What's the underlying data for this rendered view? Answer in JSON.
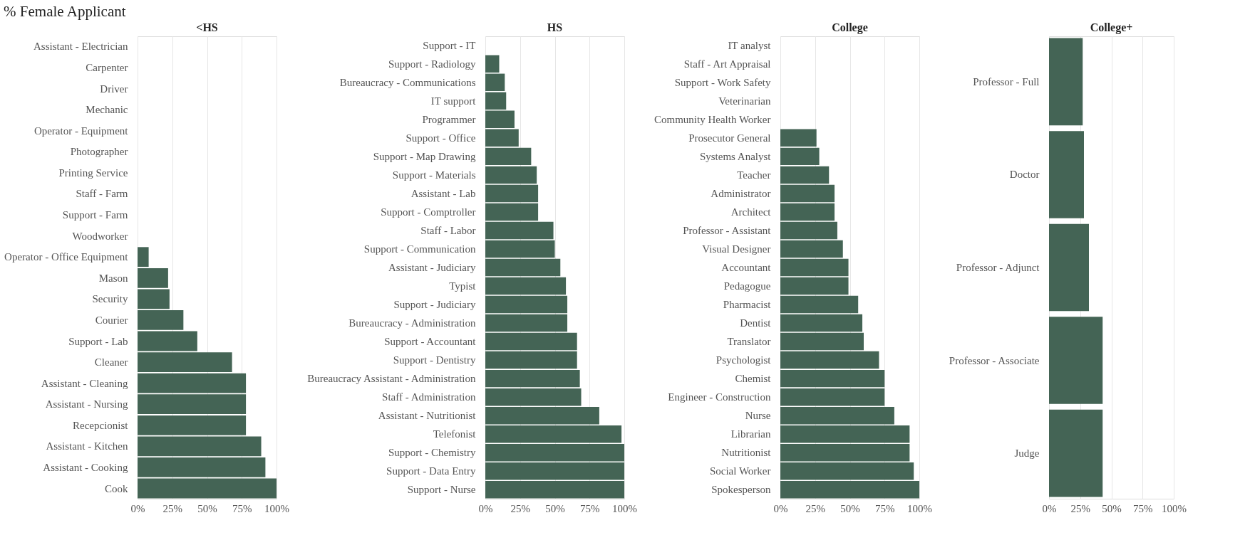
{
  "chart_data": [
    {
      "type": "bar",
      "orientation": "horizontal",
      "title": "<HS",
      "annotations": [
        "% Female Applicant"
      ],
      "color": "#446455",
      "grid": "x",
      "categories": [
        "Assistant - Electrician",
        "Carpenter",
        "Driver",
        "Mechanic",
        "Operator - Equipment",
        "Photographer",
        "Printing Service",
        "Staff - Farm",
        "Support - Farm",
        "Woodworker",
        "Operator - Office Equipment",
        "Mason",
        "Security",
        "Courier",
        "Support - Lab",
        "Cleaner",
        "Assistant - Cleaning",
        "Assistant - Nursing",
        "Recepcionist",
        "Assistant - Kitchen",
        "Assistant - Cooking",
        "Cook"
      ],
      "values": [
        0,
        0,
        0,
        0,
        0,
        0,
        0,
        0,
        0,
        0,
        8,
        22,
        23,
        33,
        43,
        68,
        78,
        78,
        78,
        89,
        92,
        100
      ],
      "xlim": [
        0,
        100
      ],
      "xticks": [
        {
          "value": 0,
          "label": "0%"
        },
        {
          "value": 25,
          "label": "25%"
        },
        {
          "value": 50,
          "label": "50%"
        },
        {
          "value": 75,
          "label": "75%"
        },
        {
          "value": 100,
          "label": "100%"
        }
      ]
    },
    {
      "type": "bar",
      "orientation": "horizontal",
      "title": "HS",
      "color": "#446455",
      "grid": "x",
      "categories": [
        "Support - IT",
        "Support - Radiology",
        "Bureaucracy - Communications",
        "IT support",
        "Programmer",
        "Support - Office",
        "Support - Map Drawing",
        "Support - Materials",
        "Assistant - Lab",
        "Support - Comptroller",
        "Staff - Labor",
        "Support - Communication",
        "Assistant - Judiciary",
        "Typist",
        "Support - Judiciary",
        "Bureaucracy - Administration",
        "Support - Accountant",
        "Support - Dentistry",
        "Bureaucracy Assistant - Administration",
        "Staff - Administration",
        "Assistant - Nutritionist",
        "Telefonist",
        "Support - Chemistry",
        "Support - Data Entry",
        "Support - Nurse"
      ],
      "values": [
        0,
        10,
        14,
        15,
        21,
        24,
        33,
        37,
        38,
        38,
        49,
        50,
        54,
        58,
        59,
        59,
        66,
        66,
        68,
        69,
        82,
        98,
        100,
        100,
        100
      ],
      "xlim": [
        0,
        100
      ],
      "xticks": [
        {
          "value": 0,
          "label": "0%"
        },
        {
          "value": 25,
          "label": "25%"
        },
        {
          "value": 50,
          "label": "50%"
        },
        {
          "value": 75,
          "label": "75%"
        },
        {
          "value": 100,
          "label": "100%"
        }
      ]
    },
    {
      "type": "bar",
      "orientation": "horizontal",
      "title": "College",
      "color": "#446455",
      "grid": "x",
      "categories": [
        "IT analyst",
        "Staff - Art Appraisal",
        "Support - Work Safety",
        "Veterinarian",
        "Community Health Worker",
        "Prosecutor General",
        "Systems Analyst",
        "Teacher",
        "Administrator",
        "Architect",
        "Professor - Assistant",
        "Visual Designer",
        "Accountant",
        "Pedagogue",
        "Pharmacist",
        "Dentist",
        "Translator",
        "Psychologist",
        "Chemist",
        "Engineer - Construction",
        "Nurse",
        "Librarian",
        "Nutritionist",
        "Social Worker",
        "Spokesperson"
      ],
      "values": [
        0,
        0,
        0,
        0,
        0,
        26,
        28,
        35,
        39,
        39,
        41,
        45,
        49,
        49,
        56,
        59,
        60,
        71,
        75,
        75,
        82,
        93,
        93,
        96,
        100
      ],
      "xlim": [
        0,
        100
      ],
      "xticks": [
        {
          "value": 0,
          "label": "0%"
        },
        {
          "value": 25,
          "label": "25%"
        },
        {
          "value": 50,
          "label": "50%"
        },
        {
          "value": 75,
          "label": "75%"
        },
        {
          "value": 100,
          "label": "100%"
        }
      ]
    },
    {
      "type": "bar",
      "orientation": "horizontal",
      "title": "College+",
      "color": "#446455",
      "grid": "x",
      "categories": [
        "Professor - Full",
        "Doctor",
        "Professor - Adjunct",
        "Professor - Associate",
        "Judge"
      ],
      "values": [
        27,
        28,
        32,
        43,
        43
      ],
      "xlim": [
        0,
        100
      ],
      "xticks": [
        {
          "value": 0,
          "label": "0%"
        },
        {
          "value": 25,
          "label": "25%"
        },
        {
          "value": 50,
          "label": "50%"
        },
        {
          "value": 75,
          "label": "75%"
        },
        {
          "value": 100,
          "label": "100%"
        }
      ]
    }
  ]
}
